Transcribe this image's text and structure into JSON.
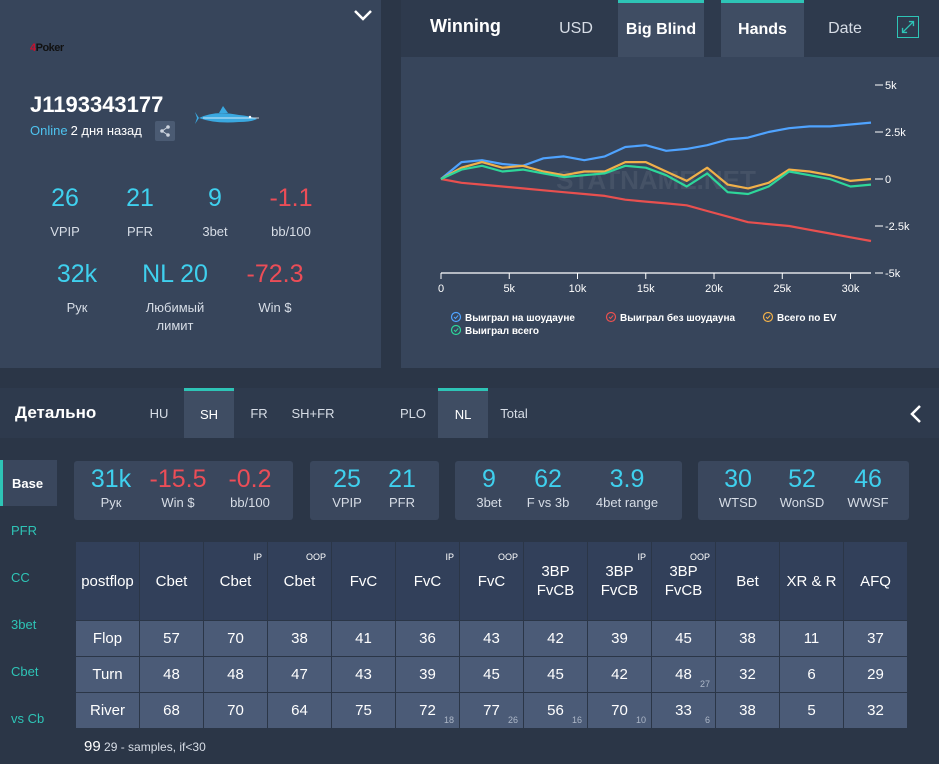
{
  "profile": {
    "logo_text": "Poker",
    "player_name": "J1193343177",
    "online_label": "Online",
    "last_seen": "2 дня назад",
    "stats_row1": [
      {
        "value": "26",
        "label": "VPIP",
        "color": "#3fd0ee"
      },
      {
        "value": "21",
        "label": "PFR",
        "color": "#3fd0ee"
      },
      {
        "value": "9",
        "label": "3bet",
        "color": "#3fd0ee"
      },
      {
        "value": "-1.1",
        "label": "bb/100",
        "color": "#ec4d57"
      }
    ],
    "stats_row2": [
      {
        "value": "32k",
        "label": "Рук",
        "color": "#3fd0ee"
      },
      {
        "value": "NL 20",
        "label": "Любимый лимит",
        "color": "#3fd0ee"
      },
      {
        "value": "-72.3",
        "label": "Win $",
        "color": "#ec4d57"
      }
    ]
  },
  "winning": {
    "title": "Winning",
    "tabs": [
      {
        "label": "USD",
        "active": false
      },
      {
        "label": "Big Blind",
        "active": true
      },
      {
        "label": "Hands",
        "active": true
      },
      {
        "label": "Date",
        "active": false
      }
    ]
  },
  "chart_data": {
    "type": "line",
    "watermark": "STATNAME.NET",
    "x_ticks": [
      "0",
      "5k",
      "10k",
      "15k",
      "20k",
      "25k",
      "30k"
    ],
    "y_ticks": [
      "5k",
      "2.5k",
      "0",
      "-2.5k",
      "-5k"
    ],
    "xlim": [
      0,
      31500
    ],
    "ylim": [
      -5000,
      5000
    ],
    "x": [
      0,
      1500,
      3000,
      4500,
      6000,
      7500,
      9000,
      10500,
      12000,
      13500,
      15000,
      16500,
      18000,
      19500,
      21000,
      22500,
      24000,
      25500,
      27000,
      28500,
      30000,
      31500
    ],
    "series": [
      {
        "name": "Выиграл на шоудауне",
        "color": "#4fa3ff",
        "values": [
          0,
          900,
          1000,
          800,
          700,
          1100,
          1200,
          1000,
          1200,
          1700,
          1800,
          1500,
          1600,
          1800,
          2100,
          2200,
          2500,
          2700,
          2800,
          2800,
          2900,
          3000
        ]
      },
      {
        "name": "Выиграл без шоудауна",
        "color": "#e8504f",
        "values": [
          0,
          -200,
          -300,
          -400,
          -500,
          -600,
          -700,
          -800,
          -900,
          -1100,
          -1200,
          -1300,
          -1400,
          -1700,
          -2000,
          -2300,
          -2400,
          -2500,
          -2700,
          -2900,
          -3100,
          -3300
        ]
      },
      {
        "name": "Всего по EV",
        "color": "#f0b04a",
        "values": [
          0,
          600,
          900,
          600,
          700,
          400,
          200,
          400,
          400,
          900,
          900,
          400,
          -100,
          600,
          -300,
          -500,
          -200,
          500,
          400,
          200,
          -100,
          0
        ]
      },
      {
        "name": "Выиграл всего",
        "color": "#2ed69a",
        "values": [
          0,
          500,
          700,
          400,
          500,
          300,
          100,
          200,
          300,
          700,
          600,
          200,
          -400,
          300,
          -700,
          -800,
          -400,
          400,
          200,
          0,
          -400,
          -300
        ]
      }
    ]
  },
  "detail": {
    "title": "Детально",
    "tabs": [
      {
        "label": "HU",
        "active": false
      },
      {
        "label": "SH",
        "active": true
      },
      {
        "label": "FR",
        "active": false
      },
      {
        "label": "SH+FR",
        "active": false
      },
      {
        "label": "PLO",
        "active": false
      },
      {
        "label": "NL",
        "active": true
      },
      {
        "label": "Total",
        "active": false
      }
    ],
    "sidebar": [
      {
        "label": "Base",
        "active": true
      },
      {
        "label": "PFR",
        "active": false
      },
      {
        "label": "CC",
        "active": false
      },
      {
        "label": "3bet",
        "active": false
      },
      {
        "label": "Cbet",
        "active": false
      },
      {
        "label": "vs Cb",
        "active": false
      }
    ],
    "boxes": [
      [
        {
          "value": "31k",
          "label": "Рук",
          "color": "#3fd0ee"
        },
        {
          "value": "-15.5",
          "label": "Win $",
          "color": "#ec4d57"
        },
        {
          "value": "-0.2",
          "label": "bb/100",
          "color": "#ec4d57"
        }
      ],
      [
        {
          "value": "25",
          "label": "VPIP",
          "color": "#3fd0ee"
        },
        {
          "value": "21",
          "label": "PFR",
          "color": "#3fd0ee"
        }
      ],
      [
        {
          "value": "9",
          "label": "3bet",
          "color": "#3fd0ee"
        },
        {
          "value": "62",
          "label": "F vs 3b",
          "color": "#3fd0ee"
        },
        {
          "value": "3.9",
          "label": "4bet range",
          "color": "#3fd0ee"
        }
      ],
      [
        {
          "value": "30",
          "label": "WTSD",
          "color": "#3fd0ee"
        },
        {
          "value": "52",
          "label": "WonSD",
          "color": "#3fd0ee"
        },
        {
          "value": "46",
          "label": "WWSF",
          "color": "#3fd0ee"
        }
      ]
    ],
    "table": {
      "headers": [
        {
          "l1": "postflop",
          "l2": "",
          "sup": ""
        },
        {
          "l1": "Cbet",
          "l2": "",
          "sup": ""
        },
        {
          "l1": "Cbet",
          "l2": "",
          "sup": "IP"
        },
        {
          "l1": "Cbet",
          "l2": "",
          "sup": "OOP"
        },
        {
          "l1": "FvC",
          "l2": "",
          "sup": ""
        },
        {
          "l1": "FvC",
          "l2": "",
          "sup": "IP"
        },
        {
          "l1": "FvC",
          "l2": "",
          "sup": "OOP"
        },
        {
          "l1": "3BP",
          "l2": "FvCB",
          "sup": ""
        },
        {
          "l1": "3BP",
          "l2": "FvCB",
          "sup": "IP"
        },
        {
          "l1": "3BP",
          "l2": "FvCB",
          "sup": "OOP"
        },
        {
          "l1": "Bet",
          "l2": "",
          "sup": ""
        },
        {
          "l1": "XR & R",
          "l2": "",
          "sup": ""
        },
        {
          "l1": "AFQ",
          "l2": "",
          "sup": ""
        }
      ],
      "rows": [
        {
          "cells": [
            {
              "v": "Flop",
              "s": ""
            },
            {
              "v": "57",
              "s": ""
            },
            {
              "v": "70",
              "s": ""
            },
            {
              "v": "38",
              "s": ""
            },
            {
              "v": "41",
              "s": ""
            },
            {
              "v": "36",
              "s": ""
            },
            {
              "v": "43",
              "s": ""
            },
            {
              "v": "42",
              "s": ""
            },
            {
              "v": "39",
              "s": ""
            },
            {
              "v": "45",
              "s": ""
            },
            {
              "v": "38",
              "s": ""
            },
            {
              "v": "11",
              "s": ""
            },
            {
              "v": "37",
              "s": ""
            }
          ]
        },
        {
          "cells": [
            {
              "v": "Turn",
              "s": ""
            },
            {
              "v": "48",
              "s": ""
            },
            {
              "v": "48",
              "s": ""
            },
            {
              "v": "47",
              "s": ""
            },
            {
              "v": "43",
              "s": ""
            },
            {
              "v": "39",
              "s": ""
            },
            {
              "v": "45",
              "s": ""
            },
            {
              "v": "45",
              "s": ""
            },
            {
              "v": "42",
              "s": ""
            },
            {
              "v": "48",
              "s": "27"
            },
            {
              "v": "32",
              "s": ""
            },
            {
              "v": "6",
              "s": ""
            },
            {
              "v": "29",
              "s": ""
            }
          ]
        },
        {
          "cells": [
            {
              "v": "River",
              "s": ""
            },
            {
              "v": "68",
              "s": ""
            },
            {
              "v": "70",
              "s": ""
            },
            {
              "v": "64",
              "s": ""
            },
            {
              "v": "75",
              "s": ""
            },
            {
              "v": "72",
              "s": "18"
            },
            {
              "v": "77",
              "s": "26"
            },
            {
              "v": "56",
              "s": "16"
            },
            {
              "v": "70",
              "s": "10"
            },
            {
              "v": "33",
              "s": "6"
            },
            {
              "v": "38",
              "s": ""
            },
            {
              "v": "5",
              "s": ""
            },
            {
              "v": "32",
              "s": ""
            }
          ]
        }
      ]
    },
    "footnote_big": "99",
    "footnote_text": "29 - samples, if<30"
  }
}
